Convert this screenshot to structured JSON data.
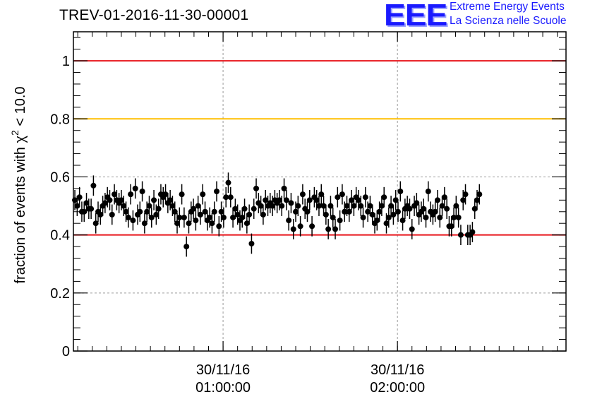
{
  "header": {
    "title": "TREV-01-2016-11-30-00001",
    "logo_mark": "EEE",
    "logo_line1": "Extreme Energy Events",
    "logo_line2": "La Scienza nelle Scuole"
  },
  "chart_data": {
    "type": "scatter",
    "title": "TREV-01-2016-11-30-00001",
    "xlabel": "",
    "ylabel": "fraction of events with χ² < 10.0",
    "ylabel_parts": {
      "pre": "fraction of events with ",
      "chi": "χ",
      "sup": "2",
      "post": " < 10.0"
    },
    "ylim": [
      0,
      1.1
    ],
    "yticks": [
      {
        "v": 0,
        "label": "0"
      },
      {
        "v": 0.2,
        "label": "0.2"
      },
      {
        "v": 0.4,
        "label": "0.4"
      },
      {
        "v": 0.6,
        "label": "0.6"
      },
      {
        "v": 0.8,
        "label": "0.8"
      },
      {
        "v": 1,
        "label": "1"
      }
    ],
    "xlim_minutes": [
      8.5,
      178
    ],
    "xticks": [
      {
        "minutes": 60,
        "date": "30/11/16",
        "time": "01:00:00"
      },
      {
        "minutes": 120,
        "date": "30/11/16",
        "time": "02:00:00"
      }
    ],
    "grid": true,
    "reference_lines": [
      {
        "y": 1.0,
        "color": "#e8141b"
      },
      {
        "y": 0.8,
        "color": "#ffbf00"
      },
      {
        "y": 0.4,
        "color": "#e8141b"
      }
    ],
    "marker_color": "#000000",
    "error": 0.035,
    "x_start_minutes": 9,
    "x_step_minutes": 0.8,
    "series": [
      {
        "values": [
          0.52,
          0.5,
          0.53,
          0.48,
          0.48,
          0.51,
          0.49,
          0.49,
          0.57,
          0.44,
          0.48,
          0.47,
          0.5,
          0.51,
          0.53,
          0.52,
          0.47,
          0.54,
          0.52,
          0.51,
          0.52,
          0.5,
          0.48,
          0.46,
          0.54,
          0.45,
          0.56,
          0.47,
          0.48,
          0.55,
          0.44,
          0.48,
          0.5,
          0.46,
          0.52,
          0.47,
          0.49,
          0.54,
          0.53,
          0.54,
          0.51,
          0.52,
          0.5,
          0.48,
          0.44,
          0.46,
          0.54,
          0.46,
          0.36,
          0.44,
          0.48,
          0.49,
          0.45,
          0.5,
          0.47,
          0.54,
          0.48,
          0.45,
          0.46,
          0.44,
          0.48,
          0.55,
          0.43,
          0.48,
          0.46,
          0.53,
          0.58,
          0.53,
          0.46,
          0.49,
          0.47,
          0.45,
          0.46,
          0.49,
          0.44,
          0.47,
          0.37,
          0.49,
          0.56,
          0.51,
          0.5,
          0.47,
          0.52,
          0.5,
          0.51,
          0.5,
          0.52,
          0.51,
          0.52,
          0.5,
          0.56,
          0.52,
          0.45,
          0.51,
          0.42,
          0.48,
          0.5,
          0.43,
          0.54,
          0.49,
          0.48,
          0.52,
          0.43,
          0.53,
          0.52,
          0.5,
          0.54,
          0.5,
          0.47,
          0.42,
          0.5,
          0.46,
          0.42,
          0.53,
          0.45,
          0.54,
          0.48,
          0.5,
          0.48,
          0.52,
          0.5,
          0.53,
          0.52,
          0.5,
          0.46,
          0.53,
          0.48,
          0.5,
          0.47,
          0.44,
          0.45,
          0.48,
          0.5,
          0.53,
          0.44,
          0.46,
          0.5,
          0.47,
          0.52,
          0.48,
          0.55,
          0.45,
          0.49,
          0.5,
          0.49,
          0.42,
          0.5,
          0.51,
          0.47,
          0.48,
          0.49,
          0.46,
          0.55,
          0.48,
          0.47,
          0.48,
          0.52,
          0.46,
          0.5,
          0.53,
          0.49,
          0.43,
          0.43,
          0.46,
          0.5,
          0.46,
          0.4,
          0.52,
          0.54,
          0.4,
          0.4,
          0.41,
          0.49,
          0.52,
          0.54
        ]
      }
    ]
  }
}
